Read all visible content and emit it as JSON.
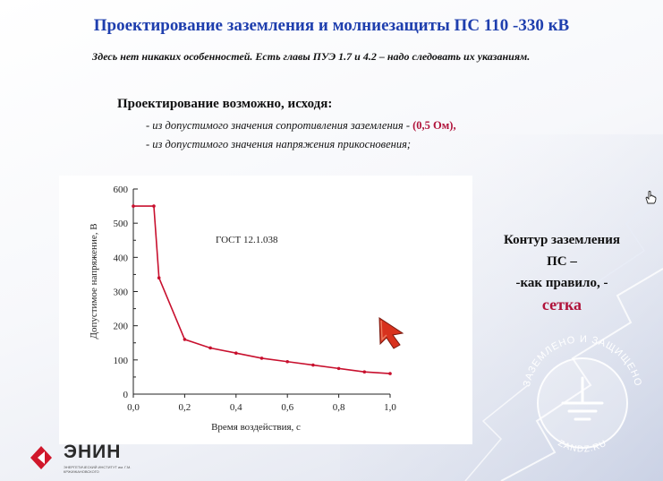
{
  "title": "Проектирование заземления и молниезащиты  ПС 110 -330 кВ",
  "subtitle": "Здесь нет никаких особенностей. Есть главы ПУЭ 1.7 и 4.2 – надо следовать их указаниям.",
  "heading": "Проектирование возможно, исходя:",
  "bullet1": "- из допустимого значения сопротивления заземления - ",
  "bullet1_value": "(0,5 Ом),",
  "bullet2": "- из допустимого значения напряжения прикосновения;",
  "right_text": {
    "line1": "Контур заземления",
    "line2": "ПС –",
    "line3": "-как правило, -",
    "line4": "сетка"
  },
  "logo": {
    "name": "ЭНИН",
    "subtext": "ЭНЕРГЕТИЧЕСКИЙ ИНСТИТУТ им. Г.М. КРЖИЖАНОВСКОГО"
  },
  "watermark": {
    "text": "ЗАЗЕМЛЕНО И ЗАЩИЩЕНО",
    "site": "ZANDZ.RU"
  },
  "colors": {
    "title": "#1f3fae",
    "highlight": "#b0123a",
    "curve": "#c8102e",
    "cursor_arrow": "#d8321e"
  },
  "chart_data": {
    "type": "line",
    "annotation": "ГОСТ 12.1.038",
    "xlabel": "Время воздействия,  с",
    "ylabel": "Допустимое напряжение,  В",
    "xlim": [
      0,
      1.0
    ],
    "ylim": [
      0,
      600
    ],
    "x_ticks": [
      "0,0",
      "0,2",
      "0,4",
      "0,6",
      "0,8",
      "1,0"
    ],
    "y_ticks": [
      "0",
      "100",
      "200",
      "300",
      "400",
      "500",
      "600"
    ],
    "series": [
      {
        "x": [
          0.0,
          0.08,
          0.1,
          0.2,
          0.3,
          0.4,
          0.5,
          0.6,
          0.7,
          0.8,
          0.9,
          1.0
        ],
        "values": [
          550,
          550,
          340,
          160,
          135,
          120,
          105,
          95,
          85,
          75,
          65,
          60
        ],
        "color": "#c8102e"
      }
    ]
  }
}
